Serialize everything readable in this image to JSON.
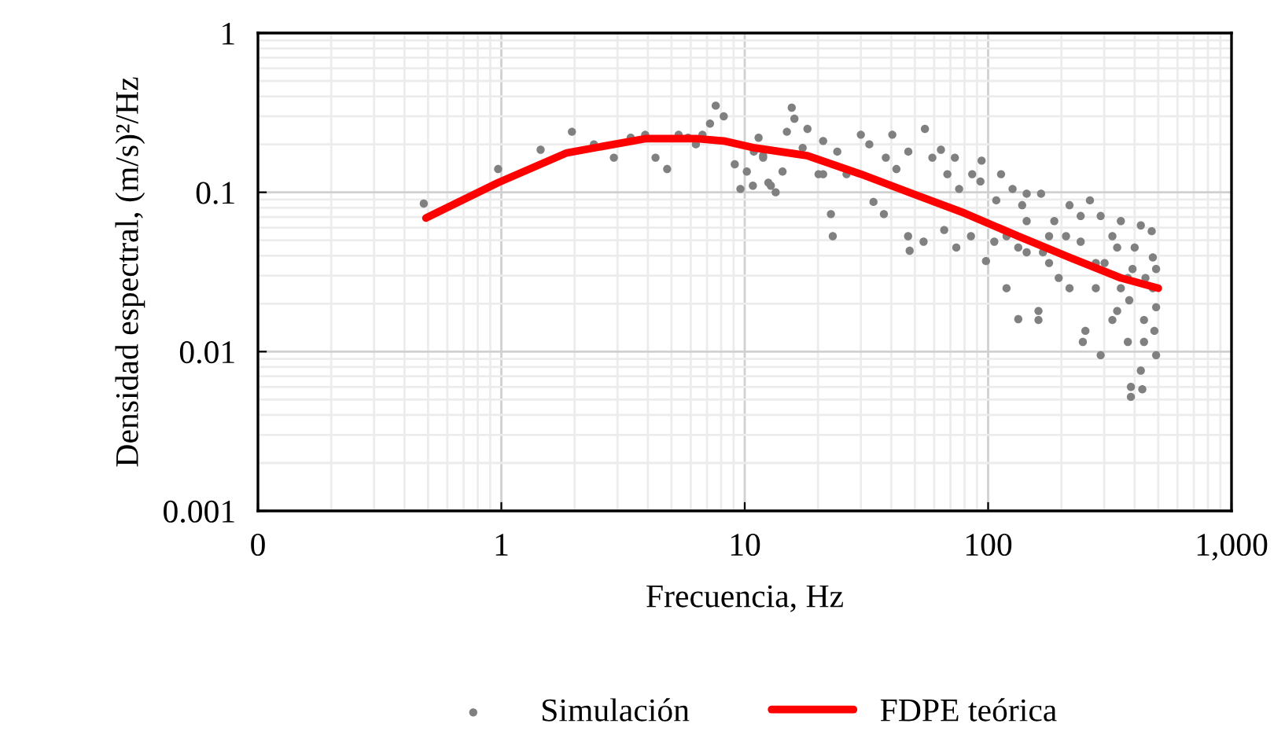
{
  "chart_data": {
    "type": "scatter",
    "xlabel": "Frecuencia, Hz",
    "ylabel": "Densidad espectral, (m/s)²/Hz",
    "log": "xy",
    "grid": true,
    "legend": "bottom",
    "xlim": [
      0.1,
      1000
    ],
    "xticks": [
      {
        "value": 0.1,
        "label": "0"
      },
      1,
      10,
      100,
      {
        "value": 1000,
        "label": "1,000"
      }
    ],
    "ylim": [
      0.001,
      1
    ],
    "yticks": [
      0.001,
      0.01,
      0.1,
      1
    ],
    "series": [
      {
        "name": "Simulación",
        "marker": "circle",
        "color": "#808080",
        "x": [
          0.48,
          0.97,
          1.45,
          1.95,
          2.4,
          2.9,
          3.4,
          3.9,
          4.3,
          4.8,
          5.35,
          5.85,
          6.3,
          6.7,
          7.2,
          7.6,
          8.2,
          9.1,
          9.6,
          10.2,
          10.8,
          10.9,
          11.4,
          11.9,
          12.5,
          15.6,
          16,
          14.9,
          18.1,
          11.9,
          14.3,
          13.4,
          12.8,
          17.3,
          20.1,
          22.6,
          23,
          21,
          26.2,
          30,
          32.5,
          33.8,
          37.3,
          40.4,
          42,
          46.9,
          47.6,
          54.3,
          55,
          64,
          68,
          66,
          76,
          74,
          85,
          94,
          98,
          93,
          108,
          106,
          119,
          133,
          126,
          138,
          161,
          161,
          165,
          144,
          178,
          187,
          216,
          216,
          251,
          262,
          290,
          290,
          301,
          324,
          339,
          351,
          375,
          380,
          392,
          386,
          386,
          424,
          430,
          424,
          437,
          470,
          475,
          475,
          482,
          490,
          490,
          490,
          443,
          351,
          277,
          240,
          195,
          178,
          144,
          119,
          113,
          133,
          245,
          339,
          437,
          240,
          324,
          400,
          375,
          277,
          209,
          168,
          144,
          86,
          73,
          59,
          47,
          38,
          24,
          21
        ],
        "values": [
          0.085,
          0.14,
          0.185,
          0.24,
          0.2,
          0.165,
          0.22,
          0.23,
          0.165,
          0.14,
          0.23,
          0.22,
          0.2,
          0.23,
          0.27,
          0.35,
          0.3,
          0.15,
          0.105,
          0.135,
          0.11,
          0.18,
          0.22,
          0.165,
          0.115,
          0.34,
          0.29,
          0.24,
          0.25,
          0.17,
          0.135,
          0.1,
          0.11,
          0.19,
          0.13,
          0.073,
          0.053,
          0.21,
          0.13,
          0.23,
          0.2,
          0.087,
          0.073,
          0.23,
          0.14,
          0.053,
          0.043,
          0.049,
          0.25,
          0.185,
          0.13,
          0.058,
          0.105,
          0.045,
          0.053,
          0.158,
          0.037,
          0.117,
          0.089,
          0.049,
          0.025,
          0.016,
          0.105,
          0.083,
          0.0158,
          0.018,
          0.098,
          0.042,
          0.036,
          0.066,
          0.083,
          0.025,
          0.0135,
          0.089,
          0.0095,
          0.071,
          0.036,
          0.0158,
          0.045,
          0.066,
          0.0115,
          0.021,
          0.033,
          0.006,
          0.0052,
          0.0076,
          0.0058,
          0.062,
          0.0158,
          0.057,
          0.039,
          0.025,
          0.0135,
          0.0095,
          0.033,
          0.019,
          0.029,
          0.025,
          0.025,
          0.049,
          0.029,
          0.053,
          0.066,
          0.053,
          0.13,
          0.045,
          0.0115,
          0.018,
          0.0115,
          0.071,
          0.053,
          0.045,
          0.029,
          0.036,
          0.053,
          0.042,
          0.098,
          0.13,
          0.165,
          0.165,
          0.18,
          0.165,
          0.18,
          0.13
        ]
      },
      {
        "name": "FDPE teórica",
        "type": "line",
        "marker": "none",
        "line_style": "solid",
        "color": "#ff0000",
        "x": [
          0.49,
          0.97,
          1.86,
          3.9,
          6.4,
          8.2,
          11,
          18,
          30,
          49,
          80,
          133,
          216,
          351,
          500
        ],
        "values": [
          0.069,
          0.115,
          0.177,
          0.217,
          0.217,
          0.21,
          0.19,
          0.17,
          0.13,
          0.098,
          0.074,
          0.053,
          0.039,
          0.029,
          0.025
        ]
      }
    ]
  }
}
